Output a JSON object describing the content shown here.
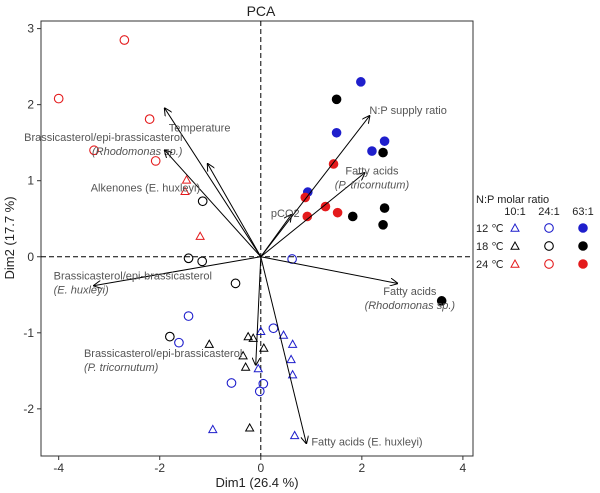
{
  "chart_data": {
    "type": "scatter",
    "title": "PCA",
    "xlabel": "Dim1 (26.4 %)",
    "ylabel": "Dim2 (17.7 %)",
    "xlim": [
      -4.35,
      4.2
    ],
    "ylim": [
      -2.62,
      3.1
    ],
    "xticks": [
      -4,
      -2,
      0,
      2,
      4
    ],
    "yticks": [
      -2,
      -1,
      0,
      1,
      2,
      3
    ],
    "grid": false,
    "legend": {
      "title": "N:P molar ratio",
      "ratios": [
        "10:1",
        "24:1",
        "63:1"
      ],
      "temperatures": [
        "12 ℃",
        "18 ℃",
        "24 ℃"
      ],
      "placement": "right"
    },
    "temperature_colors": {
      "12": "#1f1fcc",
      "18": "#000000",
      "24": "#e41a1c"
    },
    "ratio_shapes": {
      "10:1": "open-triangle",
      "24:1": "open-circle",
      "63:1": "filled-circle"
    },
    "points": [
      {
        "x": -2.7,
        "y": 2.85,
        "temp": "24",
        "ratio": "24:1"
      },
      {
        "x": -4.0,
        "y": 2.08,
        "temp": "24",
        "ratio": "24:1"
      },
      {
        "x": -2.2,
        "y": 1.81,
        "temp": "24",
        "ratio": "24:1"
      },
      {
        "x": -3.3,
        "y": 1.4,
        "temp": "24",
        "ratio": "24:1"
      },
      {
        "x": -2.08,
        "y": 1.26,
        "temp": "24",
        "ratio": "24:1"
      },
      {
        "x": -1.47,
        "y": 1.01,
        "temp": "24",
        "ratio": "10:1"
      },
      {
        "x": -1.5,
        "y": 0.86,
        "temp": "24",
        "ratio": "10:1"
      },
      {
        "x": -1.2,
        "y": 0.27,
        "temp": "24",
        "ratio": "10:1"
      },
      {
        "x": -1.15,
        "y": 0.73,
        "temp": "18",
        "ratio": "24:1"
      },
      {
        "x": -1.43,
        "y": -0.02,
        "temp": "18",
        "ratio": "24:1"
      },
      {
        "x": -1.16,
        "y": -0.06,
        "temp": "18",
        "ratio": "24:1"
      },
      {
        "x": -0.5,
        "y": -0.35,
        "temp": "18",
        "ratio": "24:1"
      },
      {
        "x": -1.8,
        "y": -1.05,
        "temp": "18",
        "ratio": "24:1"
      },
      {
        "x": -1.02,
        "y": -1.15,
        "temp": "18",
        "ratio": "10:1"
      },
      {
        "x": -0.25,
        "y": -1.05,
        "temp": "18",
        "ratio": "10:1"
      },
      {
        "x": -0.15,
        "y": -1.07,
        "temp": "18",
        "ratio": "10:1"
      },
      {
        "x": -0.35,
        "y": -1.3,
        "temp": "18",
        "ratio": "10:1"
      },
      {
        "x": 0.06,
        "y": -1.2,
        "temp": "18",
        "ratio": "10:1"
      },
      {
        "x": -0.3,
        "y": -1.45,
        "temp": "18",
        "ratio": "10:1"
      },
      {
        "x": -0.22,
        "y": -2.25,
        "temp": "18",
        "ratio": "10:1"
      },
      {
        "x": 1.5,
        "y": 2.07,
        "temp": "18",
        "ratio": "63:1"
      },
      {
        "x": 2.42,
        "y": 1.37,
        "temp": "18",
        "ratio": "63:1"
      },
      {
        "x": 2.45,
        "y": 0.64,
        "temp": "18",
        "ratio": "63:1"
      },
      {
        "x": 1.82,
        "y": 0.53,
        "temp": "18",
        "ratio": "63:1"
      },
      {
        "x": 2.42,
        "y": 0.42,
        "temp": "18",
        "ratio": "63:1"
      },
      {
        "x": 3.58,
        "y": -0.58,
        "temp": "18",
        "ratio": "63:1"
      },
      {
        "x": 1.5,
        "y": 1.63,
        "temp": "12",
        "ratio": "63:1"
      },
      {
        "x": 1.98,
        "y": 2.3,
        "temp": "12",
        "ratio": "63:1"
      },
      {
        "x": 2.45,
        "y": 1.52,
        "temp": "12",
        "ratio": "63:1"
      },
      {
        "x": 2.2,
        "y": 1.39,
        "temp": "12",
        "ratio": "63:1"
      },
      {
        "x": 0.93,
        "y": 0.85,
        "temp": "12",
        "ratio": "63:1"
      },
      {
        "x": 0.62,
        "y": -0.03,
        "temp": "12",
        "ratio": "24:1"
      },
      {
        "x": -1.43,
        "y": -0.78,
        "temp": "12",
        "ratio": "24:1"
      },
      {
        "x": 0.25,
        "y": -0.94,
        "temp": "12",
        "ratio": "24:1"
      },
      {
        "x": -1.62,
        "y": -1.13,
        "temp": "12",
        "ratio": "24:1"
      },
      {
        "x": -0.58,
        "y": -1.66,
        "temp": "12",
        "ratio": "24:1"
      },
      {
        "x": -0.02,
        "y": -1.77,
        "temp": "12",
        "ratio": "24:1"
      },
      {
        "x": 0.05,
        "y": -1.67,
        "temp": "12",
        "ratio": "24:1"
      },
      {
        "x": 0.0,
        "y": -0.98,
        "temp": "12",
        "ratio": "10:1"
      },
      {
        "x": 0.45,
        "y": -1.03,
        "temp": "12",
        "ratio": "10:1"
      },
      {
        "x": 0.63,
        "y": -1.15,
        "temp": "12",
        "ratio": "10:1"
      },
      {
        "x": 0.6,
        "y": -1.35,
        "temp": "12",
        "ratio": "10:1"
      },
      {
        "x": 0.63,
        "y": -1.55,
        "temp": "12",
        "ratio": "10:1"
      },
      {
        "x": -0.05,
        "y": -1.47,
        "temp": "12",
        "ratio": "10:1"
      },
      {
        "x": -0.95,
        "y": -2.27,
        "temp": "12",
        "ratio": "10:1"
      },
      {
        "x": 0.67,
        "y": -2.35,
        "temp": "12",
        "ratio": "10:1"
      },
      {
        "x": 0.88,
        "y": 0.78,
        "temp": "24",
        "ratio": "63:1"
      },
      {
        "x": 1.44,
        "y": 1.22,
        "temp": "24",
        "ratio": "63:1"
      },
      {
        "x": 1.28,
        "y": 0.66,
        "temp": "24",
        "ratio": "63:1"
      },
      {
        "x": 1.52,
        "y": 0.58,
        "temp": "24",
        "ratio": "63:1"
      },
      {
        "x": 0.92,
        "y": 0.53,
        "temp": "24",
        "ratio": "63:1"
      }
    ],
    "vectors": [
      {
        "label": "Temperature",
        "italic": "",
        "x": -1.05,
        "y": 1.22
      },
      {
        "label": "Brassicasterol/epi-brassicasterol",
        "italic": "(Rhodomonas sp.)",
        "x": -1.9,
        "y": 1.95
      },
      {
        "label": "Alkenones (E. huxleyi)",
        "italic": "",
        "x": -1.9,
        "y": 1.4
      },
      {
        "label": "pCO2",
        "italic": "",
        "x": 0.6,
        "y": 0.55
      },
      {
        "label": "N:P supply ratio",
        "italic": "",
        "x": 2.15,
        "y": 1.85
      },
      {
        "label": "Fatty acids",
        "italic": "(P. tricornutum)",
        "x": 2.05,
        "y": 1.1
      },
      {
        "label": "Brassicasterol/epi-brassicasterol",
        "italic": "(E. huxleyi)",
        "x": -3.3,
        "y": -0.38
      },
      {
        "label": "Fatty acids",
        "italic": "(Rhodomonas sp.)",
        "x": 2.7,
        "y": -0.35
      },
      {
        "label": "Brassicasterol/epi-brassicasterol",
        "italic": "(P. tricornutum)",
        "x": -0.1,
        "y": -1.42
      },
      {
        "label": "Fatty acids (E. huxleyi)",
        "italic": "",
        "x": 0.9,
        "y": -2.45
      }
    ]
  }
}
